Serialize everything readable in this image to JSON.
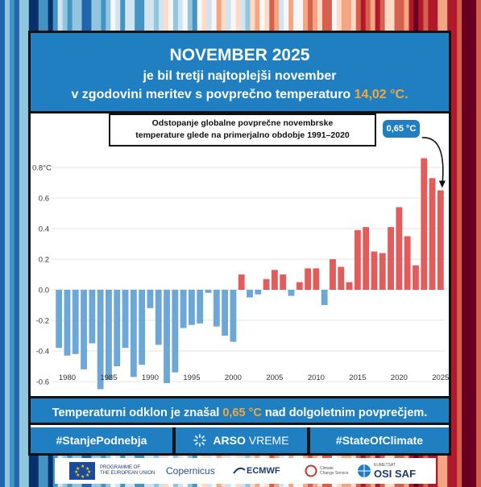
{
  "header": {
    "title": "NOVEMBER 2025",
    "line1": "je bil tretji najtoplejši november",
    "line2_prefix": "v zgodovini meritev s povprečno temperaturo ",
    "line2_value": "14,02 °C."
  },
  "subtitle": {
    "line1": "Odstopanje globalne povprečne novembrske",
    "line2": "temperature glede na primerjalno obdobje 1991–2020"
  },
  "callout": "0,65 °C",
  "footer": {
    "prefix": "Temperaturni odklon je znašal ",
    "value": "0,65 °C",
    "suffix": " nad dolgoletnim povprečjem."
  },
  "hashtags": {
    "left": "#StanjePodnebja",
    "brand_bold": "ARSO",
    "brand_light": "VREME",
    "right": "#StateOfClimate"
  },
  "logos": {
    "eu_line1": "PROGRAMME OF",
    "eu_line2": "THE EUROPEAN UNION",
    "copernicus": "Copernicus",
    "ecmwf": "ECMWF",
    "ccs_line1": "Climate",
    "ccs_line2": "Change Service",
    "osisaf_top": "EUMETSAT",
    "osisaf": "OSI SAF"
  },
  "colors": {
    "header_blue": "#1f7fc1",
    "positive_bar": "#e35b5b",
    "negative_bar": "#6da7d8",
    "highlight_orange": "#f4a73a"
  },
  "chart_data": {
    "type": "bar",
    "x": [
      1979,
      1980,
      1981,
      1982,
      1983,
      1984,
      1985,
      1986,
      1987,
      1988,
      1989,
      1990,
      1991,
      1992,
      1993,
      1994,
      1995,
      1996,
      1997,
      1998,
      1999,
      2000,
      2001,
      2002,
      2003,
      2004,
      2005,
      2006,
      2007,
      2008,
      2009,
      2010,
      2011,
      2012,
      2013,
      2014,
      2015,
      2016,
      2017,
      2018,
      2019,
      2020,
      2021,
      2022,
      2023,
      2024,
      2025
    ],
    "values": [
      -0.38,
      -0.43,
      -0.42,
      -0.52,
      -0.35,
      -0.65,
      -0.59,
      -0.5,
      -0.38,
      -0.57,
      -0.49,
      -0.12,
      -0.36,
      -0.61,
      -0.54,
      -0.25,
      -0.23,
      -0.22,
      -0.02,
      -0.24,
      -0.3,
      -0.34,
      0.1,
      -0.05,
      -0.03,
      0.07,
      0.13,
      0.1,
      -0.04,
      0.05,
      0.14,
      0.14,
      -0.1,
      0.2,
      0.15,
      0.05,
      0.39,
      0.41,
      0.25,
      0.24,
      0.41,
      0.54,
      0.35,
      0.16,
      0.86,
      0.73,
      0.65
    ],
    "xticks": [
      1980,
      1985,
      1990,
      1995,
      2000,
      2005,
      2010,
      2015,
      2020,
      2025
    ],
    "yticks": [
      -0.6,
      -0.4,
      -0.2,
      0.0,
      0.2,
      0.4,
      0.6,
      0.8
    ],
    "ytick_labels": [
      "-0.6",
      "-0.4",
      "-0.2",
      "0.0",
      "0.2",
      "0.4",
      "0.6",
      "0.8°C"
    ],
    "ylim": [
      -0.7,
      0.9
    ],
    "grid": true,
    "title": "Odstopanje globalne povprečne novembrske temperature glede na primerjalno obdobje 1991–2020",
    "xlabel": "",
    "ylabel": ""
  }
}
